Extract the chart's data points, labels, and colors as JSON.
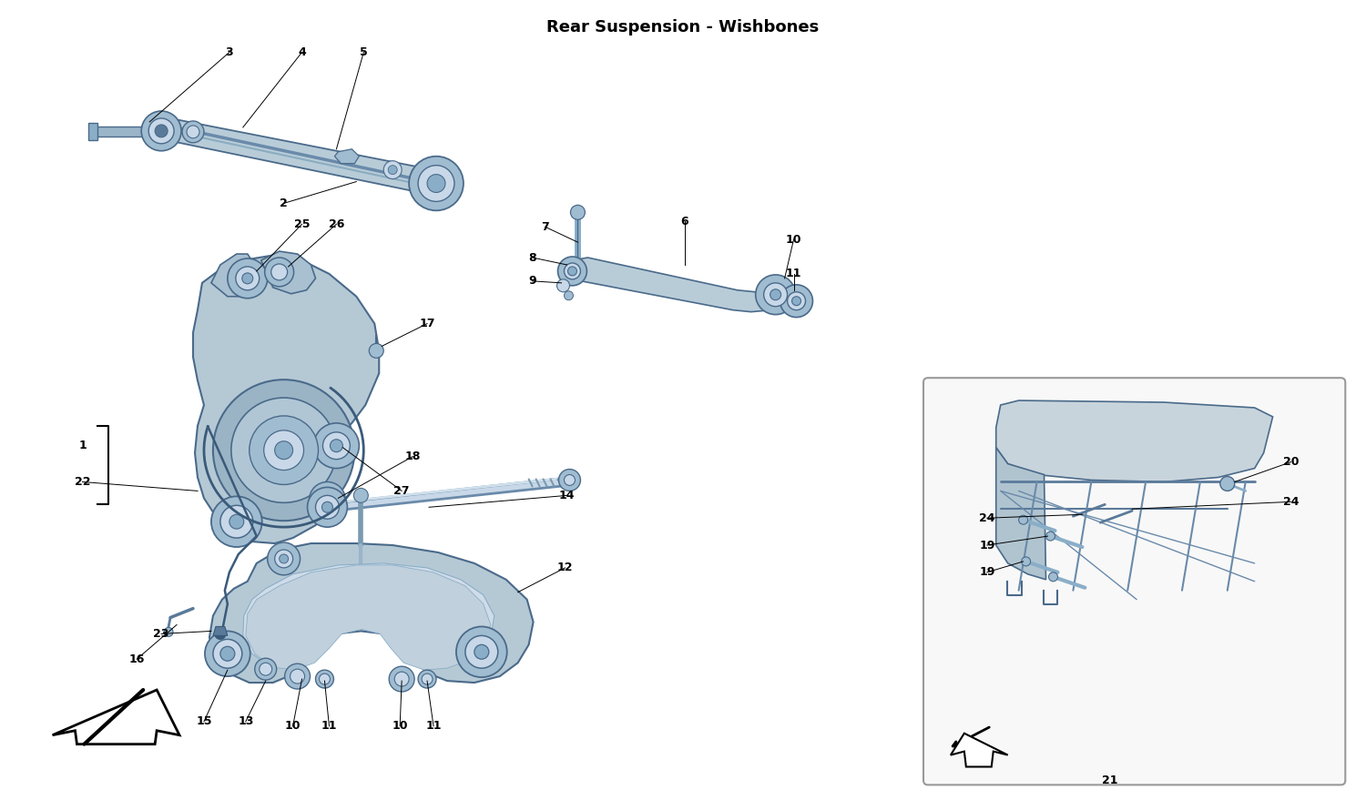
{
  "title": "Rear Suspension - Wishbones",
  "bg": "#f5f5f5",
  "white": "#ffffff",
  "lb1": "#b8ccd8",
  "lb2": "#a0bcd0",
  "lb3": "#c8d8e8",
  "dk": "#4a6a8a",
  "md": "#6a8aaa",
  "lc": "#000000",
  "fs": 9,
  "fig_w": 15.0,
  "fig_h": 8.9
}
